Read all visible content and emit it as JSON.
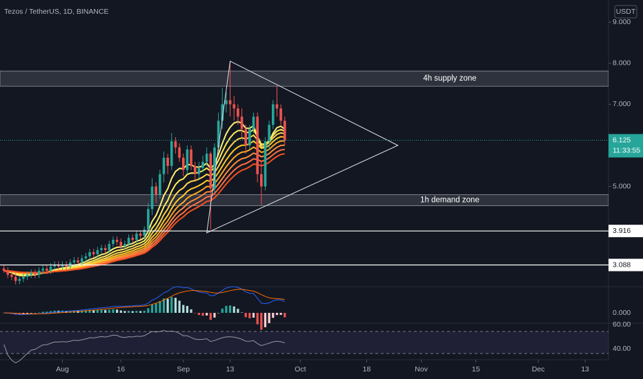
{
  "chart_data": {
    "type": "candlestick",
    "title": "Tezos / TetherUS, 1D, BINANCE",
    "currency": "USDT",
    "up_color": "#26a69a",
    "down_color": "#ef5350",
    "x": [
      "Jul 17",
      "Jul 18",
      "Jul 19",
      "Jul 20",
      "Jul 21",
      "Jul 22",
      "Jul 23",
      "Jul 24",
      "Jul 25",
      "Jul 26",
      "Jul 27",
      "Jul 28",
      "Jul 29",
      "Jul 30",
      "Jul 31",
      "Aug 1",
      "Aug 2",
      "Aug 3",
      "Aug 4",
      "Aug 5",
      "Aug 6",
      "Aug 7",
      "Aug 8",
      "Aug 9",
      "Aug 10",
      "Aug 11",
      "Aug 12",
      "Aug 13",
      "Aug 14",
      "Aug 15",
      "Aug 16",
      "Aug 17",
      "Aug 18",
      "Aug 19",
      "Aug 20",
      "Aug 21",
      "Aug 22",
      "Aug 23",
      "Aug 24",
      "Aug 25",
      "Aug 26",
      "Aug 27",
      "Aug 28",
      "Aug 29",
      "Aug 30",
      "Aug 31",
      "Sep 1",
      "Sep 2",
      "Sep 3",
      "Sep 4",
      "Sep 5",
      "Sep 6",
      "Sep 7",
      "Sep 8",
      "Sep 9",
      "Sep 10",
      "Sep 11",
      "Sep 12",
      "Sep 13",
      "Sep 14",
      "Sep 15",
      "Sep 16",
      "Sep 17",
      "Sep 18",
      "Sep 19",
      "Sep 20",
      "Sep 21",
      "Sep 22",
      "Sep 23",
      "Sep 24",
      "Sep 25",
      "Sep 26",
      "Sep 27"
    ],
    "open": [
      3.0,
      2.95,
      2.85,
      2.8,
      2.7,
      2.75,
      2.8,
      2.85,
      2.9,
      2.85,
      2.95,
      3.0,
      2.95,
      3.05,
      3.1,
      3.05,
      3.1,
      3.05,
      3.15,
      3.2,
      3.15,
      3.25,
      3.3,
      3.4,
      3.35,
      3.45,
      3.5,
      3.45,
      3.6,
      3.7,
      3.65,
      3.55,
      3.6,
      3.75,
      3.7,
      3.85,
      3.8,
      3.95,
      4.45,
      5.0,
      4.8,
      5.3,
      5.7,
      5.5,
      6.1,
      5.95,
      5.7,
      5.4,
      5.9,
      5.5,
      5.3,
      5.45,
      5.6,
      5.8,
      4.95,
      5.95,
      6.6,
      7.0,
      7.1,
      7.0,
      6.9,
      6.7,
      6.4,
      6.0,
      6.4,
      6.7,
      5.3,
      5.0,
      6.1,
      6.5,
      7.0,
      6.9,
      6.6
    ],
    "high": [
      3.08,
      3.03,
      2.93,
      2.88,
      2.83,
      2.88,
      2.93,
      2.98,
      2.98,
      3.03,
      3.08,
      3.08,
      3.13,
      3.18,
      3.18,
      3.18,
      3.18,
      3.23,
      3.28,
      3.28,
      3.33,
      3.38,
      3.48,
      3.48,
      3.53,
      3.58,
      3.58,
      3.68,
      3.78,
      3.78,
      3.73,
      3.68,
      3.83,
      3.83,
      3.93,
      3.93,
      4.03,
      4.6,
      5.2,
      5.1,
      5.4,
      5.85,
      5.8,
      6.3,
      6.2,
      6.05,
      5.8,
      6.0,
      6.0,
      5.6,
      5.6,
      5.75,
      5.95,
      5.85,
      6.05,
      6.8,
      7.4,
      7.3,
      8.05,
      7.2,
      7.0,
      6.9,
      6.5,
      6.5,
      6.8,
      6.8,
      5.6,
      6.2,
      6.6,
      7.1,
      7.45,
      7.0,
      6.7
    ],
    "low": [
      2.9,
      2.77,
      2.72,
      2.62,
      2.62,
      2.67,
      2.72,
      2.77,
      2.77,
      2.77,
      2.87,
      2.87,
      2.87,
      2.97,
      2.97,
      2.97,
      2.97,
      2.97,
      3.07,
      3.07,
      3.07,
      3.17,
      3.22,
      3.27,
      3.27,
      3.37,
      3.37,
      3.37,
      3.52,
      3.57,
      3.47,
      3.47,
      3.52,
      3.62,
      3.62,
      3.72,
      3.72,
      3.85,
      4.3,
      4.6,
      4.7,
      5.1,
      5.3,
      5.4,
      5.8,
      5.6,
      5.25,
      5.3,
      5.4,
      5.15,
      5.2,
      5.35,
      5.5,
      3.95,
      4.85,
      5.85,
      6.4,
      6.8,
      6.7,
      6.6,
      6.5,
      6.2,
      5.8,
      5.9,
      6.3,
      5.1,
      4.55,
      4.9,
      5.9,
      6.4,
      6.7,
      6.5,
      6.0
    ],
    "close": [
      2.95,
      2.85,
      2.8,
      2.7,
      2.75,
      2.8,
      2.85,
      2.9,
      2.85,
      2.95,
      3.0,
      2.95,
      3.05,
      3.1,
      3.05,
      3.1,
      3.05,
      3.15,
      3.2,
      3.15,
      3.25,
      3.3,
      3.4,
      3.35,
      3.45,
      3.5,
      3.45,
      3.6,
      3.7,
      3.65,
      3.55,
      3.6,
      3.75,
      3.7,
      3.85,
      3.8,
      3.95,
      4.45,
      5.0,
      4.8,
      5.3,
      5.7,
      5.5,
      6.1,
      5.95,
      5.7,
      5.4,
      5.9,
      5.5,
      5.3,
      5.45,
      5.6,
      5.8,
      4.95,
      5.95,
      6.6,
      7.0,
      7.1,
      7.0,
      6.9,
      6.7,
      6.4,
      6.0,
      6.4,
      6.7,
      5.3,
      5.0,
      6.1,
      6.5,
      7.0,
      6.9,
      6.6,
      6.125
    ],
    "xlim": [
      "Jul 16",
      "Dec 19"
    ],
    "xticks": [
      {
        "value": "Aug 1",
        "label": "Aug"
      },
      {
        "value": "Aug 16",
        "label": "16"
      },
      {
        "value": "Sep 1",
        "label": "Sep"
      },
      {
        "value": "Sep 13",
        "label": "13"
      },
      {
        "value": "Oct 1",
        "label": "Oct"
      },
      {
        "value": "Oct 18",
        "label": "18"
      },
      {
        "value": "Nov 1",
        "label": "Nov"
      },
      {
        "value": "Nov 15",
        "label": "15"
      },
      {
        "value": "Dec 1",
        "label": "Dec"
      },
      {
        "value": "Dec 13",
        "label": "13"
      }
    ],
    "ylim": [
      2.56,
      9.54
    ],
    "yticks": [
      {
        "value": 5,
        "label": "5.000"
      },
      {
        "value": 7,
        "label": "7.000"
      },
      {
        "value": 8,
        "label": "8.000"
      },
      {
        "value": 9,
        "label": "9.000"
      }
    ],
    "levels": [
      3.916,
      3.088
    ],
    "zones": [
      {
        "label": "4h supply zone",
        "low": 7.44,
        "high": 7.81
      },
      {
        "label": "1h demand zone",
        "low": 4.53,
        "high": 4.8
      }
    ],
    "triangle": [
      {
        "x": "Sep 13",
        "y": 8.05
      },
      {
        "x": "Oct 26",
        "y": 6.0
      },
      {
        "x": "Sep 7",
        "y": 3.87
      }
    ],
    "last_price": {
      "value": 6.125,
      "countdown": "11:33:55"
    },
    "macd_pane": {
      "yticks": [
        {
          "value": 0,
          "label": "0.000"
        }
      ]
    },
    "rsi_pane": {
      "yticks": [
        {
          "value": 60,
          "label": "60.00"
        },
        {
          "value": 40,
          "label": "40.00"
        }
      ]
    }
  }
}
